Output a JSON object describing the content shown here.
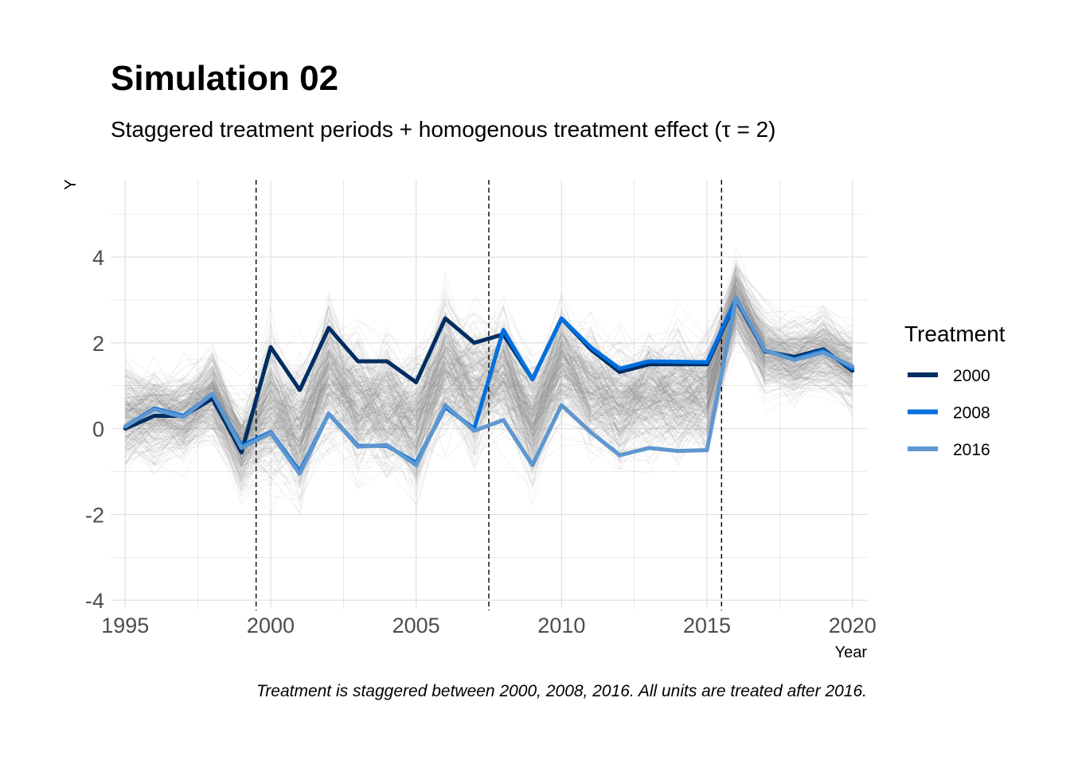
{
  "chart_data": {
    "type": "line",
    "title": "Simulation 02",
    "subtitle": "Staggered treatment periods + homogenous treatment effect (τ = 2)",
    "xlabel": "Year",
    "ylabel": "Y",
    "caption": "Treatment is staggered between 2000, 2008, 2016. All units are treated after 2016.",
    "xlim": [
      1994.5,
      2020.5
    ],
    "ylim": [
      -4.2,
      5.8
    ],
    "x_ticks": [
      "1995",
      "2000",
      "2005",
      "2010",
      "2015",
      "2020"
    ],
    "y_ticks": [
      "-4",
      "-2",
      "0",
      "2",
      "4"
    ],
    "grid": true,
    "treatment_lines": [
      1999.5,
      2007.5,
      2015.5
    ],
    "legend": {
      "title": "Treatment",
      "position": "right"
    },
    "x": [
      1995,
      1996,
      1997,
      1998,
      1999,
      2000,
      2001,
      2002,
      2003,
      2004,
      2005,
      2006,
      2007,
      2008,
      2009,
      2010,
      2011,
      2012,
      2013,
      2014,
      2015,
      2016,
      2017,
      2018,
      2019,
      2020
    ],
    "series": [
      {
        "name": "2000",
        "color": "#002d62",
        "values": [
          0.0,
          0.3,
          0.3,
          0.7,
          -0.55,
          1.9,
          0.9,
          2.35,
          1.57,
          1.57,
          1.08,
          2.57,
          2.0,
          2.2,
          1.15,
          2.57,
          1.85,
          1.32,
          1.5,
          1.5,
          1.5,
          3.0,
          1.8,
          1.67,
          1.85,
          1.35
        ]
      },
      {
        "name": "2008",
        "color": "#0070e0",
        "values": [
          0.05,
          0.47,
          0.3,
          0.8,
          -0.4,
          -0.08,
          -1.0,
          0.35,
          -0.4,
          -0.4,
          -0.8,
          0.5,
          0.0,
          2.3,
          1.15,
          2.57,
          1.9,
          1.4,
          1.57,
          1.56,
          1.55,
          3.03,
          1.82,
          1.62,
          1.82,
          1.4
        ]
      },
      {
        "name": "2016",
        "color": "#5e97cf",
        "values": [
          0.05,
          0.45,
          0.27,
          0.82,
          -0.45,
          -0.1,
          -1.05,
          0.35,
          -0.42,
          -0.38,
          -0.85,
          0.55,
          -0.05,
          0.2,
          -0.85,
          0.55,
          -0.08,
          -0.62,
          -0.45,
          -0.52,
          -0.5,
          3.05,
          1.82,
          1.6,
          1.78,
          1.45
        ]
      }
    ],
    "background_units": {
      "count": 300,
      "color": "#8c8c8c",
      "period_means": [
        0.3,
        0.3,
        0.3,
        0.75,
        -0.45,
        0.5,
        -0.05,
        1.25,
        0.55,
        0.55,
        0.1,
        1.55,
        0.95,
        1.3,
        0.3,
        1.55,
        0.95,
        0.6,
        0.8,
        0.85,
        0.8,
        3.0,
        1.8,
        1.6,
        1.8,
        1.4
      ],
      "period_spread": [
        0.7,
        0.7,
        0.7,
        0.7,
        0.6,
        1.3,
        1.3,
        1.3,
        1.3,
        1.3,
        1.3,
        1.3,
        1.3,
        1.05,
        1.05,
        1.05,
        1.05,
        1.05,
        1.05,
        1.05,
        1.05,
        0.55,
        0.55,
        0.55,
        0.55,
        0.55
      ]
    }
  }
}
